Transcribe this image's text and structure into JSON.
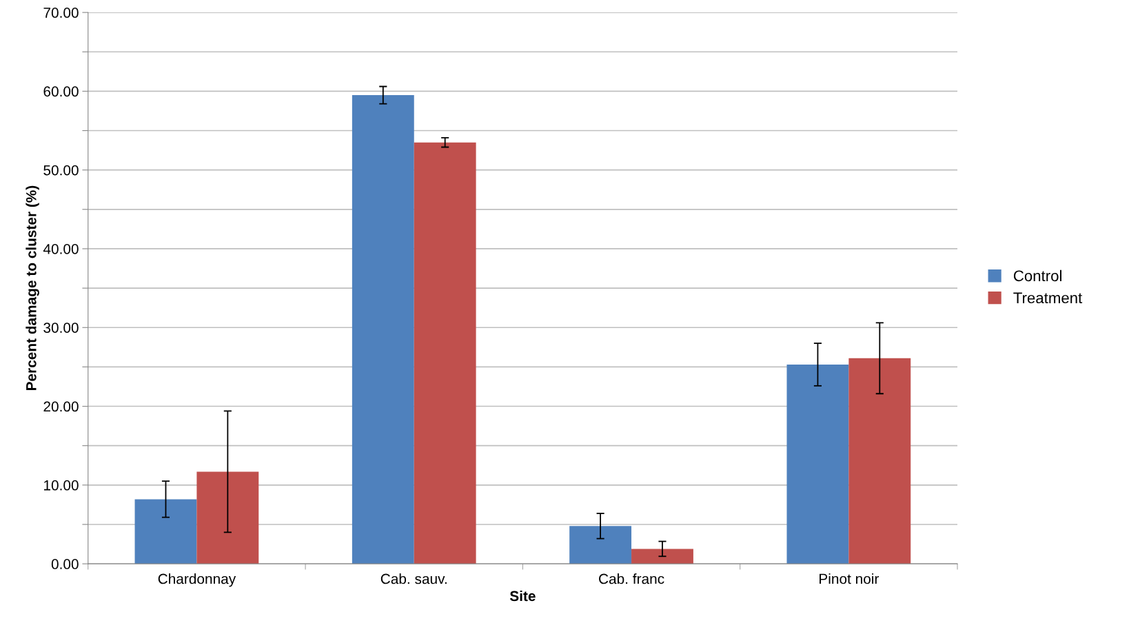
{
  "chart_data": {
    "type": "bar",
    "xlabel": "Site",
    "ylabel": "Percent damage to cluster (%)",
    "categories": [
      "Chardonnay",
      "Cab. sauv.",
      "Cab. franc",
      "Pinot noir"
    ],
    "series": [
      {
        "name": "Control",
        "color": "#4f81bd",
        "values": [
          8.2,
          59.5,
          4.8,
          25.3
        ],
        "errors": [
          2.3,
          1.1,
          1.6,
          2.7
        ]
      },
      {
        "name": "Treatment",
        "color": "#c0504d",
        "values": [
          11.7,
          53.5,
          1.9,
          26.1
        ],
        "errors": [
          7.7,
          0.6,
          0.95,
          4.5
        ]
      }
    ],
    "ylim": [
      0,
      70
    ],
    "yticks": [
      {
        "value": 0,
        "label": "0.00"
      },
      {
        "value": 5,
        "label": null
      },
      {
        "value": 10,
        "label": "10.00"
      },
      {
        "value": 15,
        "label": null
      },
      {
        "value": 20,
        "label": "20.00"
      },
      {
        "value": 25,
        "label": null
      },
      {
        "value": 30,
        "label": "30.00"
      },
      {
        "value": 35,
        "label": null
      },
      {
        "value": 40,
        "label": "40.00"
      },
      {
        "value": 45,
        "label": null
      },
      {
        "value": 50,
        "label": "50.00"
      },
      {
        "value": 55,
        "label": null
      },
      {
        "value": 60,
        "label": "60.00"
      },
      {
        "value": 65,
        "label": null
      },
      {
        "value": 70,
        "label": "70.00"
      }
    ],
    "grid": "y",
    "legend": "right"
  }
}
